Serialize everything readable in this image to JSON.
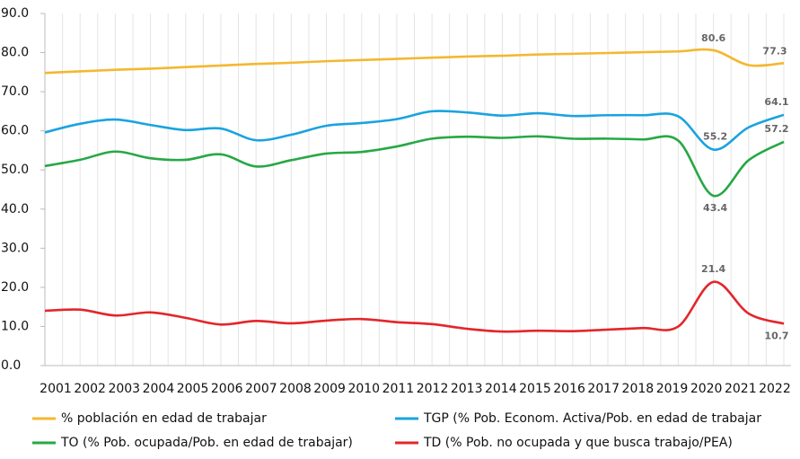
{
  "chart_data": {
    "type": "line",
    "categories": [
      "2001",
      "2002",
      "2003",
      "2004",
      "2005",
      "2006",
      "2007",
      "2008",
      "2009",
      "2010",
      "2011",
      "2012",
      "2013",
      "2014",
      "2015",
      "2016",
      "2017",
      "2018",
      "2019",
      "2020",
      "2021",
      "2022"
    ],
    "ylim": [
      0,
      90
    ],
    "yticks": [
      {
        "value": 0,
        "label": "0.0"
      },
      {
        "value": 10,
        "label": "10.0"
      },
      {
        "value": 20,
        "label": "20.0"
      },
      {
        "value": 30,
        "label": "30.0"
      },
      {
        "value": 40,
        "label": "40.0"
      },
      {
        "value": 50,
        "label": "50.0"
      },
      {
        "value": 60,
        "label": "60.0"
      },
      {
        "value": 70,
        "label": "70.0"
      },
      {
        "value": 80,
        "label": "80.0"
      },
      {
        "value": 90,
        "label": "90.0"
      }
    ],
    "grid": true,
    "legend": "bottom",
    "series": [
      {
        "name": "% población en edad de trabajar",
        "color": "#f5b731",
        "values": [
          74.8,
          75.2,
          75.6,
          75.9,
          76.3,
          76.7,
          77.1,
          77.4,
          77.8,
          78.1,
          78.4,
          78.7,
          79.0,
          79.2,
          79.5,
          79.7,
          79.9,
          80.1,
          80.3,
          80.6,
          76.8,
          77.3
        ],
        "value_labels": [
          null,
          null,
          null,
          null,
          null,
          null,
          null,
          null,
          null,
          null,
          null,
          null,
          null,
          null,
          null,
          null,
          null,
          null,
          null,
          "80.6",
          null,
          "77.3"
        ]
      },
      {
        "name": "TGP (% Pob. Econom. Activa/Pob. en edad de trabajar",
        "color": "#1aa3e0",
        "values": [
          59.6,
          61.8,
          62.9,
          61.5,
          60.2,
          60.6,
          57.6,
          59.0,
          61.3,
          62.0,
          63.0,
          65.0,
          64.7,
          63.9,
          64.5,
          63.8,
          64.0,
          64.0,
          63.7,
          55.2,
          60.9,
          64.1
        ],
        "value_labels": [
          null,
          null,
          null,
          null,
          null,
          null,
          null,
          null,
          null,
          null,
          null,
          null,
          null,
          null,
          null,
          null,
          null,
          null,
          null,
          "55.2",
          null,
          "64.1"
        ]
      },
      {
        "name": "TO (% Pob. ocupada/Pob. en edad de trabajar)",
        "color": "#27a845",
        "values": [
          51.0,
          52.6,
          54.7,
          53.0,
          52.6,
          54.0,
          50.9,
          52.5,
          54.2,
          54.6,
          56.0,
          58.0,
          58.5,
          58.2,
          58.6,
          58.0,
          58.0,
          57.8,
          57.5,
          43.4,
          52.5,
          57.2
        ],
        "value_labels": [
          null,
          null,
          null,
          null,
          null,
          null,
          null,
          null,
          null,
          null,
          null,
          null,
          null,
          null,
          null,
          null,
          null,
          null,
          null,
          "43.4",
          null,
          "57.2"
        ]
      },
      {
        "name": "TD (% Pob. no ocupada y que busca trabajo/PEA)",
        "color": "#e3262b",
        "values": [
          14.0,
          14.3,
          12.8,
          13.6,
          12.2,
          10.5,
          11.4,
          10.8,
          11.5,
          11.9,
          11.1,
          10.6,
          9.4,
          8.7,
          8.9,
          8.8,
          9.2,
          9.6,
          10.0,
          21.4,
          13.3,
          10.7
        ],
        "value_labels": [
          null,
          null,
          null,
          null,
          null,
          null,
          null,
          null,
          null,
          null,
          null,
          null,
          null,
          null,
          null,
          null,
          null,
          null,
          null,
          "21.4",
          null,
          "10.7"
        ]
      }
    ]
  }
}
